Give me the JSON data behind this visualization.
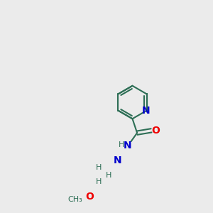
{
  "bg_color": "#ebebeb",
  "bond_color": "#2d6e55",
  "N_color": "#0000cc",
  "O_color": "#ee0000",
  "lw": 1.5,
  "figsize": [
    3.0,
    3.0
  ],
  "dpi": 100,
  "xlim": [
    0,
    300
  ],
  "ylim": [
    0,
    300
  ]
}
